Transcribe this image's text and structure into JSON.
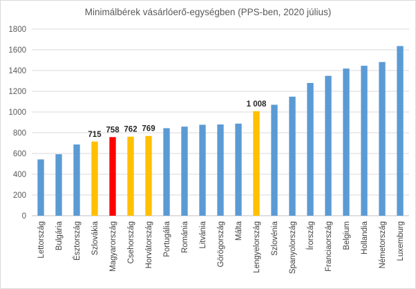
{
  "chart_data": {
    "type": "bar",
    "title": "Minimálbérek vásárlóerő-egységben (PPS-ben, 2020 július)",
    "xlabel": "",
    "ylabel": "",
    "ylim": [
      0,
      1800
    ],
    "yticks": [
      0,
      200,
      400,
      600,
      800,
      1000,
      1200,
      1400,
      1600,
      1800
    ],
    "grid": true,
    "categories": [
      "Lettország",
      "Bulgária",
      "Észtország",
      "Szlovákia",
      "Magyarország",
      "Csehország",
      "Horvátország",
      "Portugália",
      "Románia",
      "Litvánia",
      "Görögország",
      "Málta",
      "Lengyelország",
      "Szlovénia",
      "Spanyolország",
      "Írország",
      "Franciaország",
      "Belgium",
      "Hollandia",
      "Németország",
      "Luxemburg"
    ],
    "values": [
      543,
      593,
      687,
      715,
      758,
      762,
      769,
      844,
      859,
      877,
      880,
      888,
      1008,
      1070,
      1148,
      1280,
      1349,
      1419,
      1446,
      1482,
      1636
    ],
    "bar_colors": [
      "#5b9bd5",
      "#5b9bd5",
      "#5b9bd5",
      "#ffc000",
      "#ff0000",
      "#ffc000",
      "#ffc000",
      "#5b9bd5",
      "#5b9bd5",
      "#5b9bd5",
      "#5b9bd5",
      "#5b9bd5",
      "#ffc000",
      "#5b9bd5",
      "#5b9bd5",
      "#5b9bd5",
      "#5b9bd5",
      "#5b9bd5",
      "#5b9bd5",
      "#5b9bd5",
      "#5b9bd5"
    ],
    "data_labels": [
      "",
      "",
      "",
      "715",
      "758",
      "762",
      "769",
      "",
      "",
      "",
      "",
      "",
      "1 008",
      "",
      "",
      "",
      "",
      "",
      "",
      "",
      ""
    ]
  }
}
